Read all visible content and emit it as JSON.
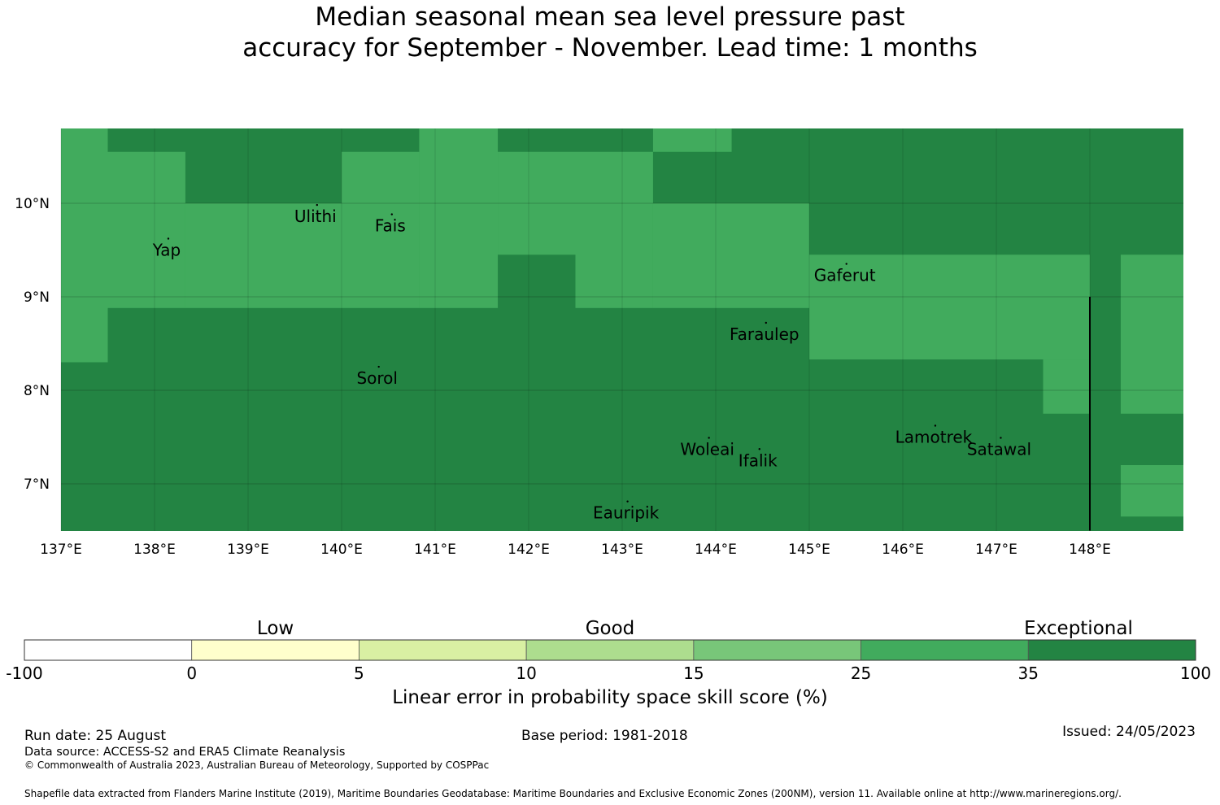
{
  "title": {
    "line1": "Median seasonal mean sea level pressure past",
    "line2": "accuracy for September - November. Lead time: 1 months"
  },
  "map": {
    "lon_range": [
      137.0,
      148.0
    ],
    "lat_range": [
      6.5,
      10.8
    ],
    "x_ticks": [
      {
        "value": 137,
        "label": "137°E"
      },
      {
        "value": 138,
        "label": "138°E"
      },
      {
        "value": 139,
        "label": "139°E"
      },
      {
        "value": 140,
        "label": "140°E"
      },
      {
        "value": 141,
        "label": "141°E"
      },
      {
        "value": 142,
        "label": "142°E"
      },
      {
        "value": 143,
        "label": "143°E"
      },
      {
        "value": 144,
        "label": "144°E"
      },
      {
        "value": 145,
        "label": "145°E"
      },
      {
        "value": 146,
        "label": "146°E"
      },
      {
        "value": 147,
        "label": "147°E"
      },
      {
        "value": 148,
        "label": "148°E"
      }
    ],
    "y_ticks": [
      {
        "value": 10,
        "label": "10°N"
      },
      {
        "value": 9,
        "label": "9°N"
      },
      {
        "value": 8,
        "label": "8°N"
      },
      {
        "value": 7,
        "label": "7°N"
      }
    ],
    "places": [
      {
        "name": "Ulithi",
        "lon": 139.72,
        "lat": 9.86
      },
      {
        "name": "Yap",
        "lon": 138.13,
        "lat": 9.5
      },
      {
        "name": "Fais",
        "lon": 140.52,
        "lat": 9.76
      },
      {
        "name": "Gaferut",
        "lon": 145.38,
        "lat": 9.23
      },
      {
        "name": "Faraulep",
        "lon": 144.52,
        "lat": 8.6
      },
      {
        "name": "Sorol",
        "lon": 140.38,
        "lat": 8.13
      },
      {
        "name": "Woleai",
        "lon": 143.91,
        "lat": 7.37
      },
      {
        "name": "Ifalik",
        "lon": 144.45,
        "lat": 7.25
      },
      {
        "name": "Lamotrek",
        "lon": 146.33,
        "lat": 7.5
      },
      {
        "name": "Satawal",
        "lon": 147.03,
        "lat": 7.37
      },
      {
        "name": "Eauripik",
        "lon": 143.04,
        "lat": 6.69
      }
    ],
    "skill_colors": {
      "25-35": "#41ab5d",
      "35-100": "#238443"
    },
    "skill_regions": [
      {
        "lon": [
          136.9,
          137.5
        ],
        "lat": [
          10.8,
          8.3
        ],
        "class": "25-35"
      },
      {
        "lon": [
          137.5,
          138.33
        ],
        "lat": [
          10.55,
          8.88
        ],
        "class": "25-35"
      },
      {
        "lon": [
          138.33,
          140.0
        ],
        "lat": [
          10.0,
          8.88
        ],
        "class": "25-35"
      },
      {
        "lon": [
          140.0,
          140.83
        ],
        "lat": [
          10.55,
          8.88
        ],
        "class": "25-35"
      },
      {
        "lon": [
          140.83,
          141.67
        ],
        "lat": [
          10.8,
          8.88
        ],
        "class": "25-35"
      },
      {
        "lon": [
          141.67,
          142.5
        ],
        "lat": [
          10.55,
          9.45
        ],
        "class": "25-35"
      },
      {
        "lon": [
          142.5,
          143.33
        ],
        "lat": [
          10.55,
          8.88
        ],
        "class": "25-35"
      },
      {
        "lon": [
          143.33,
          145.0
        ],
        "lat": [
          10.0,
          8.88
        ],
        "class": "25-35"
      },
      {
        "lon": [
          143.33,
          144.17
        ],
        "lat": [
          10.8,
          10.55
        ],
        "class": "25-35"
      },
      {
        "lon": [
          145.0,
          148.0
        ],
        "lat": [
          9.45,
          8.33
        ],
        "class": "25-35"
      },
      {
        "lon": [
          147.5,
          148.0
        ],
        "lat": [
          8.33,
          7.75
        ],
        "class": "25-35"
      },
      {
        "lon": [
          148.33,
          149.0
        ],
        "lat": [
          9.45,
          7.75
        ],
        "class": "25-35"
      },
      {
        "lon": [
          148.33,
          149.0
        ],
        "lat": [
          7.2,
          6.65
        ],
        "class": "25-35"
      }
    ],
    "boundary_line": {
      "lon": 148.0,
      "lat": [
        9.0,
        6.5
      ]
    }
  },
  "colorbar": {
    "categories": [
      {
        "label": "Low",
        "at": 1.5
      },
      {
        "label": "Good",
        "at": 3.5
      },
      {
        "label": "Exceptional",
        "at": 6.3
      }
    ],
    "ticks": [
      "-100",
      "0",
      "5",
      "10",
      "15",
      "25",
      "35",
      "100"
    ],
    "colors": [
      "#ffffff",
      "#ffffcc",
      "#d9f0a3",
      "#addd8e",
      "#78c679",
      "#41ab5d",
      "#238443"
    ],
    "title": "Linear error in probability space skill score (%)"
  },
  "footer": {
    "run_date": "Run date: 25 August",
    "base_period": "Base period: 1981-2018",
    "issued": "Issued: 24/05/2023",
    "data_source": "Data source: ACCESS-S2 and ERA5 Climate Reanalysis",
    "copyright": "© Commonwealth of Australia 2023, Australian Bureau of Meteorology, Supported by COSPPac",
    "shapefile": "Shapefile data extracted from Flanders Marine Institute (2019), Maritime Boundaries Geodatabase: Maritime Boundaries and Exclusive Economic Zones (200NM), version 11. Available online at http://www.marineregions.org/."
  }
}
